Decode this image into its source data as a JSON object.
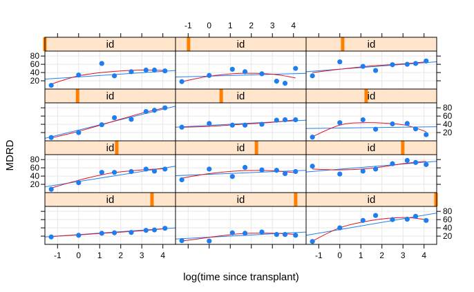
{
  "chart_data": {
    "type": "scatter",
    "xlabel": "log(time since transplant)",
    "ylabel": "MDRD",
    "xlim": [
      -1.6,
      4.6
    ],
    "ylim": [
      0,
      92
    ],
    "x_ticks": [
      -1,
      0,
      1,
      2,
      3,
      4
    ],
    "y_ticks": [
      20,
      40,
      60,
      80
    ],
    "strip_label": "id",
    "colors": {
      "point": "#1e7ef0",
      "linear_fit": "#1e7ef0",
      "smooth_fit": "#e0101e",
      "strip_bg": "#ffe5cc",
      "strip_marker": "#ff7f00",
      "grid": "#e6e6e6"
    },
    "panels": [
      {
        "row": 0,
        "col": 0,
        "strip_level": 0.0,
        "points": [
          [
            -1.3,
            9
          ],
          [
            0,
            34
          ],
          [
            1.1,
            62
          ],
          [
            1.7,
            32
          ],
          [
            2.5,
            42
          ],
          [
            3.2,
            46
          ],
          [
            3.6,
            46
          ],
          [
            4.1,
            44
          ]
        ],
        "linear": [
          [
            -1.6,
            24
          ],
          [
            4.6,
            45
          ]
        ],
        "smooth": [
          [
            -1.3,
            12
          ],
          [
            0,
            32
          ],
          [
            1.5,
            42
          ],
          [
            3,
            46
          ],
          [
            4.1,
            45
          ]
        ]
      },
      {
        "row": 0,
        "col": 1,
        "strip_level": 0.1,
        "points": [
          [
            -1.3,
            18
          ],
          [
            0,
            33
          ],
          [
            1.1,
            48
          ],
          [
            1.7,
            42
          ],
          [
            2.5,
            37
          ],
          [
            3.2,
            19
          ],
          [
            3.6,
            14
          ],
          [
            4.1,
            50
          ]
        ],
        "linear": [
          [
            -1.6,
            29
          ],
          [
            4.6,
            38
          ]
        ],
        "smooth": [
          [
            -1.3,
            18
          ],
          [
            0,
            31
          ],
          [
            1.5,
            38
          ],
          [
            3,
            36
          ],
          [
            4.1,
            27
          ]
        ]
      },
      {
        "row": 0,
        "col": 2,
        "strip_level": 0.28,
        "points": [
          [
            -1.3,
            32
          ],
          [
            0,
            66
          ],
          [
            1.1,
            55
          ],
          [
            1.7,
            45
          ],
          [
            2.5,
            59
          ],
          [
            3.2,
            60
          ],
          [
            3.6,
            62
          ],
          [
            4.1,
            68
          ]
        ],
        "linear": [
          [
            -1.6,
            42
          ],
          [
            4.6,
            66
          ]
        ],
        "smooth": [
          [
            -1.3,
            40
          ],
          [
            0,
            48
          ],
          [
            1.5,
            56
          ],
          [
            3,
            61
          ],
          [
            4.1,
            66
          ]
        ]
      },
      {
        "row": 1,
        "col": 0,
        "strip_level": 0.25,
        "points": [
          [
            -1.3,
            8
          ],
          [
            0,
            20
          ],
          [
            1.1,
            39
          ],
          [
            1.7,
            56
          ],
          [
            2.5,
            52
          ],
          [
            3.2,
            71
          ],
          [
            3.6,
            74
          ],
          [
            4.1,
            80
          ]
        ],
        "linear": [
          [
            -1.6,
            6
          ],
          [
            4.6,
            84
          ]
        ],
        "smooth": [
          [
            -1.3,
            7
          ],
          [
            0,
            23
          ],
          [
            1.5,
            45
          ],
          [
            3,
            67
          ],
          [
            4.1,
            80
          ]
        ]
      },
      {
        "row": 1,
        "col": 1,
        "strip_level": 0.35,
        "points": [
          [
            -1.3,
            33
          ],
          [
            0,
            42
          ],
          [
            1.1,
            38
          ],
          [
            1.7,
            38
          ],
          [
            2.5,
            40
          ],
          [
            3.2,
            50
          ],
          [
            3.6,
            51
          ],
          [
            4.1,
            51
          ]
        ],
        "linear": [
          [
            -1.6,
            33
          ],
          [
            4.6,
            50
          ]
        ],
        "smooth": [
          [
            -1.3,
            33
          ],
          [
            0,
            35
          ],
          [
            1.5,
            40
          ],
          [
            3,
            45
          ],
          [
            4.1,
            51
          ]
        ]
      },
      {
        "row": 1,
        "col": 2,
        "strip_level": 0.46,
        "points": [
          [
            -1.3,
            9
          ],
          [
            0,
            44
          ],
          [
            1.1,
            51
          ],
          [
            1.7,
            28
          ],
          [
            2.5,
            41
          ],
          [
            3.2,
            42
          ],
          [
            3.6,
            29
          ],
          [
            4.1,
            15
          ]
        ],
        "linear": [
          [
            -1.6,
            30
          ],
          [
            4.6,
            34
          ]
        ],
        "smooth": [
          [
            -1.3,
            10
          ],
          [
            0,
            38
          ],
          [
            1.2,
            44
          ],
          [
            3,
            39
          ],
          [
            4.1,
            22
          ]
        ]
      },
      {
        "row": 2,
        "col": 0,
        "strip_level": 0.55,
        "points": [
          [
            -1.3,
            8
          ],
          [
            0,
            24
          ],
          [
            1.1,
            49
          ],
          [
            1.7,
            49
          ],
          [
            2.5,
            51
          ],
          [
            3.2,
            57
          ],
          [
            3.6,
            52
          ],
          [
            4.1,
            57
          ]
        ],
        "linear": [
          [
            -1.6,
            14
          ],
          [
            4.6,
            64
          ]
        ],
        "smooth": [
          [
            -1.3,
            11
          ],
          [
            0,
            30
          ],
          [
            1.5,
            47
          ],
          [
            3,
            55
          ],
          [
            4.1,
            58
          ]
        ]
      },
      {
        "row": 2,
        "col": 1,
        "strip_level": 0.62,
        "points": [
          [
            -1.3,
            31
          ],
          [
            0,
            57
          ],
          [
            1.1,
            39
          ],
          [
            1.7,
            61
          ],
          [
            2.5,
            55
          ],
          [
            3.2,
            54
          ],
          [
            3.6,
            46
          ],
          [
            4.1,
            51
          ]
        ],
        "linear": [
          [
            -1.6,
            41
          ],
          [
            4.6,
            54
          ]
        ],
        "smooth": [
          [
            -1.3,
            35
          ],
          [
            0,
            46
          ],
          [
            1.5,
            53
          ],
          [
            3,
            53
          ],
          [
            4.1,
            48
          ]
        ]
      },
      {
        "row": 2,
        "col": 2,
        "strip_level": 0.74,
        "points": [
          [
            -1.3,
            64
          ],
          [
            0,
            45
          ],
          [
            1.1,
            52
          ],
          [
            1.7,
            57
          ],
          [
            2.5,
            70
          ],
          [
            3.2,
            78
          ],
          [
            3.6,
            73
          ],
          [
            4.1,
            68
          ]
        ],
        "linear": [
          [
            -1.6,
            50
          ],
          [
            4.6,
            76
          ]
        ],
        "smooth": [
          [
            -1.3,
            57
          ],
          [
            0,
            55
          ],
          [
            1.5,
            59
          ],
          [
            3,
            70
          ],
          [
            4.1,
            76
          ]
        ]
      },
      {
        "row": 3,
        "col": 0,
        "strip_level": 0.82,
        "points": [
          [
            -1.3,
            18
          ],
          [
            0,
            22
          ],
          [
            1.1,
            27
          ],
          [
            1.7,
            28
          ],
          [
            2.5,
            29
          ],
          [
            3.2,
            34
          ],
          [
            3.6,
            35
          ],
          [
            4.1,
            39
          ]
        ],
        "linear": [
          [
            -1.6,
            18
          ],
          [
            4.6,
            40
          ]
        ],
        "smooth": [
          [
            -1.3,
            19
          ],
          [
            0,
            23
          ],
          [
            1.5,
            28
          ],
          [
            3,
            33
          ],
          [
            4.1,
            38
          ]
        ]
      },
      {
        "row": 3,
        "col": 1,
        "strip_level": 0.92,
        "points": [
          [
            -1.3,
            9
          ],
          [
            0,
            8
          ],
          [
            1.1,
            28
          ],
          [
            1.7,
            27
          ],
          [
            2.5,
            30
          ],
          [
            3.2,
            24
          ],
          [
            3.6,
            24
          ],
          [
            4.1,
            22
          ]
        ],
        "linear": [
          [
            -1.6,
            13
          ],
          [
            4.6,
            30
          ]
        ],
        "smooth": [
          [
            -1.3,
            8
          ],
          [
            0,
            17
          ],
          [
            1.5,
            26
          ],
          [
            3,
            27
          ],
          [
            4.1,
            24
          ]
        ]
      },
      {
        "row": 3,
        "col": 2,
        "strip_level": 0.995,
        "points": [
          [
            -1.3,
            7
          ],
          [
            0,
            40
          ],
          [
            1.1,
            58
          ],
          [
            1.7,
            70
          ],
          [
            2.5,
            60
          ],
          [
            3.2,
            61
          ],
          [
            3.6,
            68
          ],
          [
            4.1,
            58
          ]
        ],
        "linear": [
          [
            -1.6,
            22
          ],
          [
            4.6,
            76
          ]
        ],
        "smooth": [
          [
            -1.3,
            8
          ],
          [
            0,
            40
          ],
          [
            1.5,
            58
          ],
          [
            3,
            65
          ],
          [
            4.1,
            60
          ]
        ]
      }
    ]
  }
}
